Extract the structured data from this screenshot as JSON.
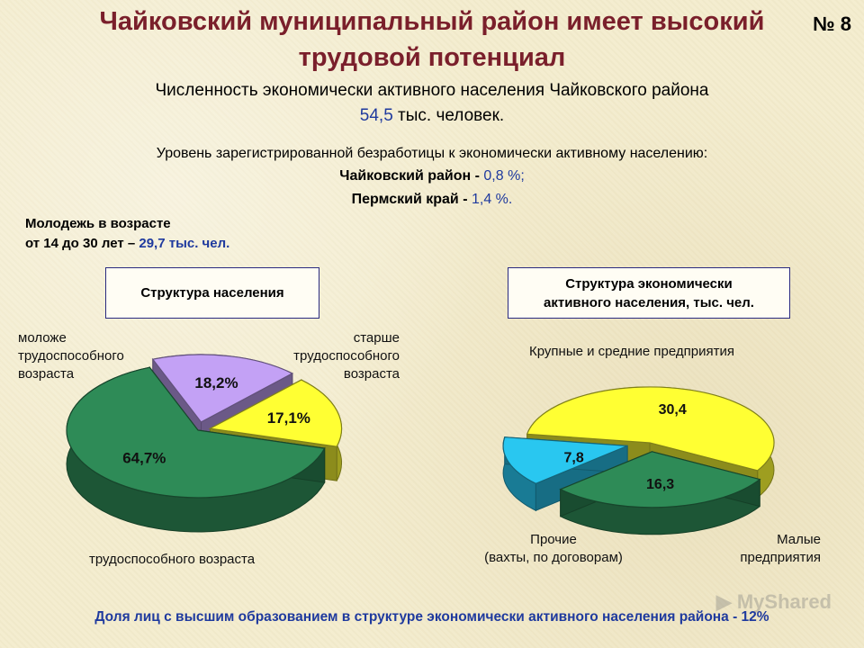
{
  "slide": {
    "title_line1": "Чайковский муниципальный район имеет высокий",
    "title_line2": "трудовой потенциал",
    "number": "№ 8"
  },
  "active_population": {
    "text": "Численность экономически активного населения Чайковского района",
    "value": "54,5",
    "unit": "тыс. человек."
  },
  "unemployment": {
    "intro": "Уровень зарегистрированной безработицы к  экономически активному населению:",
    "district_label": "Чайковский район - ",
    "district_value": "0,8 %;",
    "region_label": "Пермский край - ",
    "region_value": "1,4 %."
  },
  "youth": {
    "line1": "Молодежь в возрасте",
    "line2_prefix": "от 14 до 30 лет – ",
    "line2_value": "29,7 тыс. чел."
  },
  "footer": "Доля лиц с высшим образованием в структуре экономически активного населения района - 12%",
  "watermark": "MyShared",
  "colors": {
    "green": "#2e8b57",
    "yellow": "#ffff33",
    "purple": "#c3a1f5",
    "cyan": "#29c7f0",
    "title": "#7a1f2b",
    "accent_blue": "#1f3a9e"
  },
  "chart_data": [
    {
      "type": "pie",
      "title": "Структура населения",
      "series": [
        {
          "name": "трудоспособного возраста",
          "value": 64.7,
          "label": "64,7%",
          "color": "#2e8b57"
        },
        {
          "name": "моложе трудоспособного возраста",
          "value": 18.2,
          "label": "18,2%",
          "color": "#c3a1f5"
        },
        {
          "name": "старше трудоспособного возраста",
          "value": 17.1,
          "label": "17,1%",
          "color": "#ffff33"
        }
      ],
      "category_labels": {
        "young": [
          "моложе",
          "трудоспособного",
          "возраста"
        ],
        "old": [
          "старше",
          "трудоспособного",
          "возраста"
        ],
        "working": [
          "трудоспособного возраста"
        ]
      }
    },
    {
      "type": "pie",
      "title": "Структура экономически активного населения, тыс. чел.",
      "title_lines": [
        "Структура экономически",
        "активного населения, тыс. чел."
      ],
      "series": [
        {
          "name": "Крупные и средние предприятия",
          "value": 30.4,
          "label": "30,4",
          "color": "#ffff33"
        },
        {
          "name": "Малые предприятия",
          "value": 16.3,
          "label": "16,3",
          "color": "#2e8b57"
        },
        {
          "name": "Прочие (вахты, по договорам)",
          "value": 7.8,
          "label": "7,8",
          "color": "#29c7f0"
        }
      ],
      "category_labels": {
        "large": [
          "Крупные и средние предприятия"
        ],
        "small": [
          "Малые",
          "предприятия"
        ],
        "other": [
          "Прочие",
          "(вахты,  по договорам)"
        ]
      }
    }
  ]
}
